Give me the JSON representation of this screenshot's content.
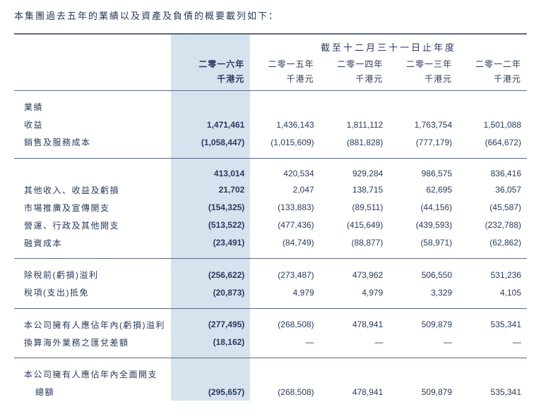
{
  "intro": "本集團過去五年的業績以及資產及負債的概要載列如下：",
  "spanningHeader": "截至十二月三十一日止年度",
  "years": {
    "y2016": "二零一六年",
    "y2015": "二零一五年",
    "y2014": "二零一四年",
    "y2013": "二零一三年",
    "y2012": "二零一二年"
  },
  "unit": "千港元",
  "rows": {
    "results": "業績",
    "revenue": {
      "label": "收益",
      "y2016": "1,471,461",
      "y2015": "1,436,143",
      "y2014": "1,811,112",
      "y2013": "1,763,754",
      "y2012": "1,501,088"
    },
    "cos": {
      "label": "銷售及服務成本",
      "y2016": "(1,058,447)",
      "y2015": "(1,015,609)",
      "y2014": "(881,828)",
      "y2013": "(777,179)",
      "y2012": "(664,672)"
    },
    "gross": {
      "label": "",
      "y2016": "413,014",
      "y2015": "420,534",
      "y2014": "929,284",
      "y2013": "986,575",
      "y2012": "836,416"
    },
    "other": {
      "label": "其他收入、收益及虧損",
      "y2016": "21,702",
      "y2015": "2,047",
      "y2014": "138,715",
      "y2013": "62,695",
      "y2012": "36,057"
    },
    "mkt": {
      "label": "市場推廣及宣傳開支",
      "y2016": "(154,325)",
      "y2015": "(133,883)",
      "y2014": "(89,511)",
      "y2013": "(44,156)",
      "y2012": "(45,587)"
    },
    "admin": {
      "label": "營運、行政及其他開支",
      "y2016": "(513,522)",
      "y2015": "(477,436)",
      "y2014": "(415,649)",
      "y2013": "(439,593)",
      "y2012": "(232,788)"
    },
    "fin": {
      "label": "融資成本",
      "y2016": "(23,491)",
      "y2015": "(84,749)",
      "y2014": "(88,877)",
      "y2013": "(58,971)",
      "y2012": "(62,862)"
    },
    "pbt": {
      "label": "除稅前(虧損)溢利",
      "y2016": "(256,622)",
      "y2015": "(273,487)",
      "y2014": "473,962",
      "y2013": "506,550",
      "y2012": "531,236"
    },
    "tax": {
      "label": "稅項(支出)抵免",
      "y2016": "(20,873)",
      "y2015": "4,979",
      "y2014": "4,979",
      "y2013": "3,329",
      "y2012": "4,105"
    },
    "attr": {
      "label": "本公司擁有人應佔年內(虧損)溢利",
      "y2016": "(277,495)",
      "y2015": "(268,508)",
      "y2014": "478,941",
      "y2013": "509,879",
      "y2012": "535,341"
    },
    "fx": {
      "label": "換算海外業務之匯兌差額",
      "y2016": "(18,162)",
      "y2015": "—",
      "y2014": "—",
      "y2013": "—",
      "y2012": "—"
    },
    "comp1": {
      "label": "本公司擁有人應佔年內全面開支"
    },
    "comp2": {
      "label": "總額",
      "y2016": "(295,657)",
      "y2015": "(268,508)",
      "y2014": "478,941",
      "y2013": "509,879",
      "y2012": "535,341"
    }
  }
}
